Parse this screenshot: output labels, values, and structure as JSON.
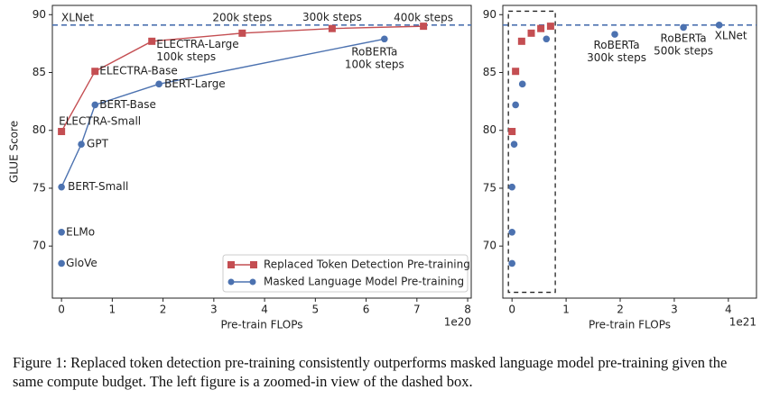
{
  "chart_data": [
    {
      "type": "line",
      "x_label": "Pre-train FLOPs",
      "x_offset_label": "1e20",
      "y_label": "GLUE Score",
      "xlim": [
        -0.18,
        8.07
      ],
      "ylim": [
        65.5,
        90.8
      ],
      "xticks": [
        0,
        1,
        2,
        3,
        4,
        5,
        6,
        7,
        8
      ],
      "yticks": [
        70,
        75,
        80,
        85,
        90
      ],
      "reference_line": {
        "label": "XLNet",
        "value": 89.1,
        "color": "#4c72b0"
      },
      "legend": "lower right",
      "series": [
        {
          "name": "Replaced Token Detection Pre-training",
          "color": "#c44e52",
          "marker": "square",
          "x": [
            0,
            0.66,
            1.78,
            3.56,
            5.33,
            7.13
          ],
          "values": [
            79.9,
            85.1,
            87.7,
            88.4,
            88.8,
            89.0
          ],
          "labels": [
            "ELECTRA-Small",
            "ELECTRA-Base",
            "ELECTRA-Large\n100k steps",
            "200k steps",
            "300k steps",
            "400k steps"
          ]
        },
        {
          "name": "Masked Language Model Pre-training",
          "color": "#4c72b0",
          "marker": "circle",
          "x": [
            0,
            null,
            0,
            null,
            0,
            0.39,
            0.66,
            1.92,
            6.36
          ],
          "values": [
            68.5,
            null,
            71.2,
            null,
            75.1,
            78.8,
            82.2,
            84.0,
            87.9
          ],
          "labels": [
            "GloVe",
            null,
            "ELMo",
            null,
            "BERT-Small",
            "GPT",
            "BERT-Base",
            "BERT-Large",
            "RoBERTa\n100k steps"
          ]
        }
      ]
    },
    {
      "type": "scatter",
      "x_offset_label": "1e21",
      "x_label": "Pre-train FLOPs",
      "xlim": [
        -0.17,
        4.52
      ],
      "ylim": [
        65.5,
        90.8
      ],
      "xticks": [
        0,
        1,
        2,
        3,
        4
      ],
      "yticks": [
        70,
        75,
        80,
        85,
        90
      ],
      "reference_line": {
        "value": 89.1,
        "color": "#4c72b0"
      },
      "box": {
        "xlim": [
          -0.067,
          0.8
        ],
        "ylim": [
          66.0,
          90.3
        ]
      },
      "series": [
        {
          "color": "#c44e52",
          "marker": "square",
          "x": [
            0,
            0.066,
            0.178,
            0.356,
            0.533,
            0.713
          ],
          "values": [
            79.9,
            85.1,
            87.7,
            88.4,
            88.8,
            89.0
          ]
        },
        {
          "color": "#4c72b0",
          "marker": "circle",
          "x": [
            0,
            0,
            0,
            0.039,
            0.066,
            0.192,
            0.636,
            1.9,
            3.17,
            3.83
          ],
          "values": [
            68.5,
            71.2,
            75.1,
            78.8,
            82.2,
            84.0,
            87.9,
            88.3,
            88.9,
            89.1
          ],
          "labels": [
            null,
            null,
            null,
            null,
            null,
            null,
            null,
            "RoBERTa\n300k steps",
            "RoBERTa\n500k steps",
            "XLNet"
          ]
        }
      ]
    }
  ],
  "caption": "Figure 1: Replaced token detection pre-training consistently outperforms masked language model pre-training given the same compute budget. The left figure is a zoomed-in view of the dashed box."
}
